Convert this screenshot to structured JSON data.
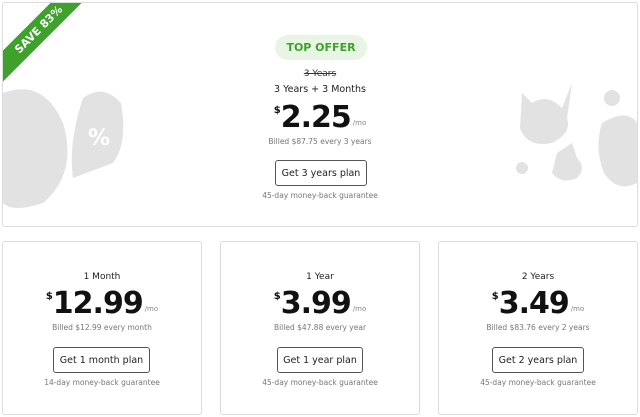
{
  "top_offer": {
    "ribbon": "SAVE 83%",
    "badge": "TOP OFFER",
    "original_term": "3 Years",
    "term": "3 Years + 3 Months",
    "currency": "$",
    "price": "2.25",
    "per": "/mo",
    "billed": "Billed $87.75 every 3 years",
    "button": "Get 3 years plan",
    "guarantee": "45-day money-back guarantee",
    "accent_color": "#3da12c"
  },
  "plans": [
    {
      "term": "1 Month",
      "currency": "$",
      "price": "12.99",
      "per": "/mo",
      "billed": "Billed $12.99 every month",
      "button": "Get 1 month plan",
      "guarantee": "14-day money-back guarantee"
    },
    {
      "term": "1 Year",
      "currency": "$",
      "price": "3.99",
      "per": "/mo",
      "billed": "Billed $47.88 every year",
      "button": "Get 1 year plan",
      "guarantee": "45-day money-back guarantee"
    },
    {
      "term": "2 Years",
      "currency": "$",
      "price": "3.49",
      "per": "/mo",
      "billed": "Billed $83.76 every 2 years",
      "button": "Get 2 years plan",
      "guarantee": "45-day money-back guarantee"
    }
  ]
}
